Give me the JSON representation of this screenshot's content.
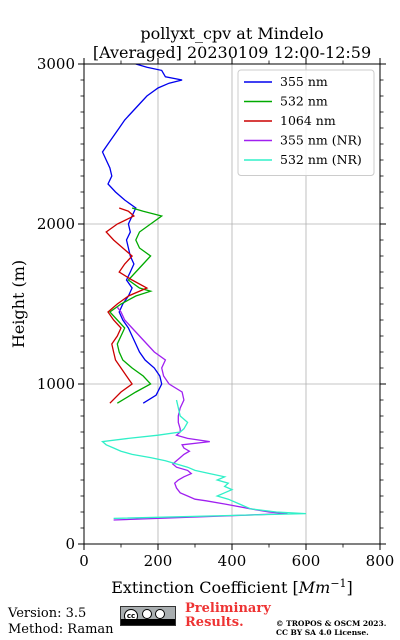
{
  "chart_data": {
    "type": "line",
    "title": "pollyxt_cpv at Mindelo",
    "subtitle": "[Averaged] 20230109 12:00-12:59",
    "xlabel": "Extinction Coefficient [",
    "xlabel_unit": "Mm",
    "xlabel_unit_exp": "−1",
    "xlabel_end": "]",
    "ylabel": "Height (m)",
    "xlim": [
      0,
      800
    ],
    "ylim": [
      0,
      3000
    ],
    "xticks": [
      0,
      200,
      400,
      600,
      800
    ],
    "yticks": [
      0,
      1000,
      2000,
      3000
    ],
    "grid": true,
    "legend_position": "top-right",
    "series": [
      {
        "name": "355 nm",
        "color": "#0000ee",
        "points": [
          [
            160,
            880
          ],
          [
            195,
            930
          ],
          [
            210,
            1000
          ],
          [
            205,
            1050
          ],
          [
            190,
            1100
          ],
          [
            165,
            1150
          ],
          [
            150,
            1200
          ],
          [
            140,
            1250
          ],
          [
            130,
            1300
          ],
          [
            120,
            1350
          ],
          [
            105,
            1400
          ],
          [
            95,
            1450
          ],
          [
            105,
            1500
          ],
          [
            120,
            1550
          ],
          [
            130,
            1600
          ],
          [
            115,
            1650
          ],
          [
            125,
            1700
          ],
          [
            135,
            1750
          ],
          [
            125,
            1800
          ],
          [
            120,
            1850
          ],
          [
            115,
            1900
          ],
          [
            125,
            1950
          ],
          [
            120,
            2000
          ],
          [
            130,
            2050
          ],
          [
            140,
            2100
          ],
          [
            110,
            2150
          ],
          [
            85,
            2200
          ],
          [
            65,
            2250
          ],
          [
            75,
            2300
          ],
          [
            70,
            2350
          ],
          [
            60,
            2400
          ],
          [
            50,
            2450
          ],
          [
            65,
            2500
          ],
          [
            80,
            2550
          ],
          [
            95,
            2600
          ],
          [
            110,
            2650
          ],
          [
            130,
            2700
          ],
          [
            150,
            2750
          ],
          [
            170,
            2800
          ],
          [
            200,
            2850
          ],
          [
            230,
            2880
          ],
          [
            265,
            2900
          ],
          [
            220,
            2920
          ],
          [
            210,
            2960
          ],
          [
            170,
            2980
          ],
          [
            140,
            3000
          ]
        ]
      },
      {
        "name": "532 nm",
        "color": "#00aa00",
        "points": [
          [
            90,
            880
          ],
          [
            140,
            950
          ],
          [
            180,
            1000
          ],
          [
            160,
            1050
          ],
          [
            130,
            1100
          ],
          [
            105,
            1150
          ],
          [
            95,
            1200
          ],
          [
            90,
            1250
          ],
          [
            100,
            1300
          ],
          [
            110,
            1350
          ],
          [
            90,
            1400
          ],
          [
            70,
            1450
          ],
          [
            100,
            1500
          ],
          [
            140,
            1550
          ],
          [
            180,
            1580
          ],
          [
            150,
            1600
          ],
          [
            120,
            1650
          ],
          [
            140,
            1700
          ],
          [
            160,
            1750
          ],
          [
            180,
            1800
          ],
          [
            150,
            1850
          ],
          [
            140,
            1900
          ],
          [
            150,
            1950
          ],
          [
            180,
            2000
          ],
          [
            210,
            2050
          ],
          [
            160,
            2080
          ],
          [
            130,
            2100
          ]
        ]
      },
      {
        "name": "1064 nm",
        "color": "#cc0000",
        "points": [
          [
            70,
            880
          ],
          [
            100,
            950
          ],
          [
            130,
            1000
          ],
          [
            115,
            1050
          ],
          [
            100,
            1100
          ],
          [
            85,
            1150
          ],
          [
            80,
            1200
          ],
          [
            75,
            1250
          ],
          [
            90,
            1300
          ],
          [
            100,
            1350
          ],
          [
            80,
            1400
          ],
          [
            65,
            1450
          ],
          [
            90,
            1500
          ],
          [
            120,
            1550
          ],
          [
            170,
            1600
          ],
          [
            130,
            1650
          ],
          [
            95,
            1700
          ],
          [
            110,
            1750
          ],
          [
            130,
            1800
          ],
          [
            105,
            1850
          ],
          [
            80,
            1900
          ],
          [
            60,
            1950
          ],
          [
            90,
            2000
          ],
          [
            135,
            2050
          ],
          [
            120,
            2080
          ],
          [
            95,
            2100
          ]
        ]
      },
      {
        "name": "355 nm (NR)",
        "color": "#a020f0",
        "points": [
          [
            80,
            150
          ],
          [
            550,
            190
          ],
          [
            500,
            200
          ],
          [
            450,
            220
          ],
          [
            380,
            250
          ],
          [
            330,
            270
          ],
          [
            300,
            280
          ],
          [
            280,
            300
          ],
          [
            260,
            320
          ],
          [
            250,
            350
          ],
          [
            245,
            380
          ],
          [
            255,
            400
          ],
          [
            270,
            420
          ],
          [
            290,
            440
          ],
          [
            280,
            460
          ],
          [
            250,
            480
          ],
          [
            240,
            500
          ],
          [
            250,
            520
          ],
          [
            260,
            540
          ],
          [
            270,
            560
          ],
          [
            285,
            580
          ],
          [
            270,
            600
          ],
          [
            265,
            620
          ],
          [
            340,
            640
          ],
          [
            280,
            660
          ],
          [
            250,
            680
          ],
          [
            260,
            700
          ],
          [
            260,
            720
          ],
          [
            255,
            760
          ],
          [
            255,
            800
          ],
          [
            260,
            850
          ],
          [
            270,
            900
          ],
          [
            265,
            950
          ],
          [
            230,
            1000
          ],
          [
            215,
            1050
          ],
          [
            210,
            1100
          ],
          [
            220,
            1150
          ],
          [
            190,
            1200
          ],
          [
            170,
            1250
          ],
          [
            150,
            1300
          ],
          [
            130,
            1350
          ],
          [
            110,
            1400
          ],
          [
            100,
            1450
          ],
          [
            90,
            1480
          ]
        ]
      },
      {
        "name": "532 nm (NR)",
        "color": "#30f0c8",
        "points": [
          [
            80,
            160
          ],
          [
            600,
            190
          ],
          [
            520,
            200
          ],
          [
            450,
            220
          ],
          [
            420,
            250
          ],
          [
            390,
            280
          ],
          [
            360,
            300
          ],
          [
            380,
            320
          ],
          [
            400,
            340
          ],
          [
            380,
            360
          ],
          [
            390,
            380
          ],
          [
            360,
            400
          ],
          [
            380,
            420
          ],
          [
            340,
            440
          ],
          [
            300,
            460
          ],
          [
            280,
            480
          ],
          [
            250,
            500
          ],
          [
            220,
            520
          ],
          [
            180,
            540
          ],
          [
            130,
            560
          ],
          [
            100,
            580
          ],
          [
            80,
            600
          ],
          [
            60,
            620
          ],
          [
            50,
            640
          ],
          [
            120,
            660
          ],
          [
            200,
            680
          ],
          [
            260,
            700
          ],
          [
            270,
            720
          ],
          [
            280,
            760
          ],
          [
            260,
            800
          ],
          [
            250,
            900
          ]
        ]
      }
    ]
  },
  "footer": {
    "version": "Version: 3.5",
    "method": "Method: Raman",
    "preliminary_line1": "Preliminary",
    "preliminary_line2": "Results.",
    "copyright_line1": "© TROPOS & OSCM 2023.",
    "copyright_line2": "CC BY SA 4.0 License."
  },
  "license_badge": {
    "icons": [
      "cc-icon",
      "by-icon",
      "sa-icon"
    ],
    "labels": [
      "BY",
      "SA"
    ]
  },
  "colors": {
    "preliminary": "#ee3333",
    "grid": "#b0b0b0"
  }
}
